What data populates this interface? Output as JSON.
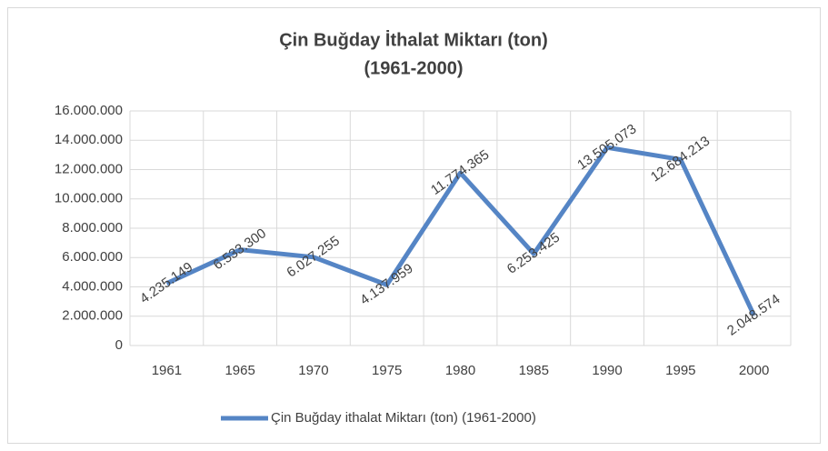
{
  "chart_data": {
    "type": "line",
    "title": [
      "Çin Buğday İthalat Miktarı (ton)",
      "(1961-2000)"
    ],
    "categories": [
      "1961",
      "1965",
      "1970",
      "1975",
      "1980",
      "1985",
      "1990",
      "1995",
      "2000"
    ],
    "series": [
      {
        "name": "Çin Buğday ithalat Miktarı (ton) (1961-2000)",
        "color": "#5585c5",
        "values": [
          4235149,
          6533300,
          6027255,
          4137959,
          11774365,
          6253425,
          13505073,
          12684213,
          2048574
        ],
        "value_labels": [
          "4.235.149",
          "6.533.300",
          "6.027.255",
          "4.137.959",
          "11.774.365",
          "6.253.425",
          "13.505.073",
          "12.684.213",
          "2.048.574"
        ]
      }
    ],
    "ylim": [
      0,
      16000000
    ],
    "yticks": [
      0,
      {
        "value": 2000000,
        "label": "2.000.000"
      },
      {
        "value": 4000000,
        "label": "4.000.000"
      },
      {
        "value": 6000000,
        "label": "6.000.000"
      },
      {
        "value": 8000000,
        "label": "8.000.000"
      },
      {
        "value": 10000000,
        "label": "10.000.000"
      },
      {
        "value": 12000000,
        "label": "12.000.000"
      },
      {
        "value": 14000000,
        "label": "14.000.000"
      },
      {
        "value": 16000000,
        "label": "16.000.000"
      }
    ],
    "grid": true,
    "legend": "bottom"
  }
}
